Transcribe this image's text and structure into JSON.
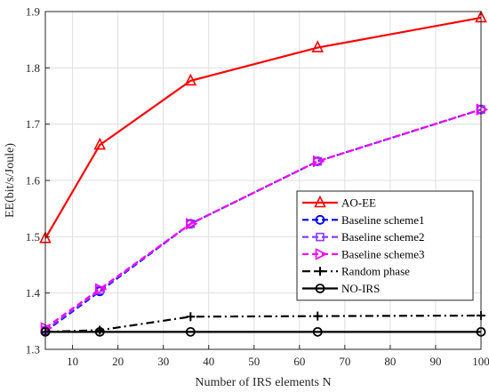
{
  "chart_data": {
    "type": "line",
    "title": "",
    "xlabel": "Number of IRS elements N",
    "ylabel": "EE(bit/s/Joule)",
    "xlim": [
      4,
      100
    ],
    "ylim": [
      1.3,
      1.9
    ],
    "xticks": [
      10,
      20,
      30,
      40,
      50,
      60,
      70,
      80,
      90,
      100
    ],
    "yticks": [
      1.3,
      1.4,
      1.5,
      1.6,
      1.7,
      1.8,
      1.9
    ],
    "grid": true,
    "legend_position": "lower-right",
    "x": [
      4,
      16,
      36,
      64,
      100
    ],
    "series": [
      {
        "name": "AO-EE",
        "values": [
          1.497,
          1.663,
          1.777,
          1.836,
          1.889
        ],
        "color": "#ff0000",
        "marker": "triangle-up",
        "line": "solid"
      },
      {
        "name": "Baseline scheme1",
        "values": [
          1.332,
          1.403,
          1.523,
          1.634,
          1.726
        ],
        "color": "#0000ff",
        "marker": "circle",
        "line": "dashed"
      },
      {
        "name": "Baseline scheme2",
        "values": [
          1.334,
          1.405,
          1.523,
          1.634,
          1.726
        ],
        "color": "#8a3cff",
        "marker": "square",
        "line": "dashed"
      },
      {
        "name": "Baseline scheme3",
        "values": [
          1.338,
          1.407,
          1.523,
          1.634,
          1.726
        ],
        "color": "#ff00ff",
        "marker": "triangle-right",
        "line": "dashed"
      },
      {
        "name": "Random phase",
        "values": [
          1.331,
          1.334,
          1.358,
          1.359,
          1.36
        ],
        "color": "#000000",
        "marker": "plus",
        "line": "dashdot"
      },
      {
        "name": "NO-IRS",
        "values": [
          1.331,
          1.331,
          1.331,
          1.331,
          1.331
        ],
        "color": "#000000",
        "marker": "circle",
        "line": "solid"
      }
    ]
  }
}
